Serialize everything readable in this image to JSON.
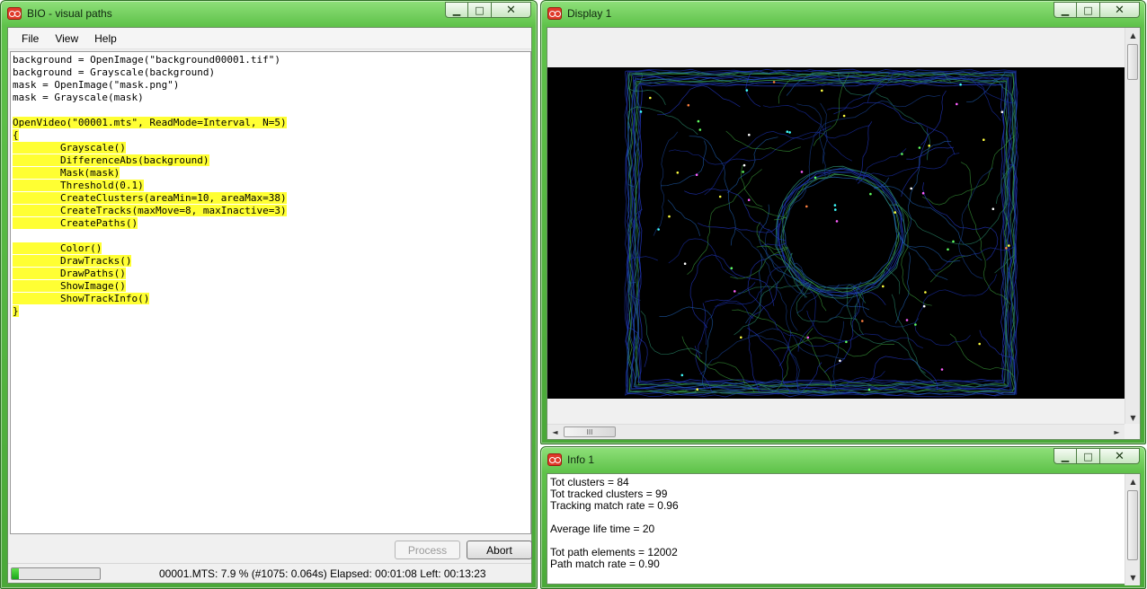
{
  "main_window": {
    "title": "BIO - visual paths",
    "menu": [
      "File",
      "View",
      "Help"
    ],
    "code_lines": [
      {
        "text": "background = OpenImage(\"background00001.tif\")",
        "highlighted": false
      },
      {
        "text": "background = Grayscale(background)",
        "highlighted": false
      },
      {
        "text": "mask = OpenImage(\"mask.png\")",
        "highlighted": false
      },
      {
        "text": "mask = Grayscale(mask)",
        "highlighted": false
      },
      {
        "text": "",
        "highlighted": false
      },
      {
        "text": "OpenVideo(\"00001.mts\", ReadMode=Interval, N=5)",
        "highlighted": true
      },
      {
        "text": "{",
        "highlighted": true
      },
      {
        "text": "        Grayscale()",
        "highlighted": true
      },
      {
        "text": "        DifferenceAbs(background)",
        "highlighted": true
      },
      {
        "text": "        Mask(mask)",
        "highlighted": true
      },
      {
        "text": "        Threshold(0.1)",
        "highlighted": true
      },
      {
        "text": "        CreateClusters(areaMin=10, areaMax=38)",
        "highlighted": true
      },
      {
        "text": "        CreateTracks(maxMove=8, maxInactive=3)",
        "highlighted": true
      },
      {
        "text": "        CreatePaths()",
        "highlighted": true
      },
      {
        "text": "",
        "highlighted": false
      },
      {
        "text": "        Color()",
        "highlighted": true
      },
      {
        "text": "        DrawTracks()",
        "highlighted": true
      },
      {
        "text": "        DrawPaths()",
        "highlighted": true
      },
      {
        "text": "        ShowImage()",
        "highlighted": true
      },
      {
        "text": "        ShowTrackInfo()",
        "highlighted": true
      },
      {
        "text": "}",
        "highlighted": true
      }
    ],
    "process_label": "Process",
    "abort_label": "Abort",
    "progress_percent": 7.9,
    "status_text": "00001.MTS: 7.9 % (#1075: 0.064s) Elapsed: 00:01:08 Left: 00:13:23"
  },
  "display_window": {
    "title": "Display 1",
    "scroll_up_glyph": "▲",
    "scroll_down_glyph": "▼",
    "scroll_left_glyph": "◄",
    "scroll_right_glyph": "►",
    "thumb_grip": "III"
  },
  "info_window": {
    "title": "Info 1",
    "lines": [
      "Tot clusters = 84",
      "Tot tracked clusters = 99",
      "Tracking match rate = 0.96",
      "",
      "Average life time = 20",
      "",
      "Tot path elements = 12002",
      "Path match rate = 0.90"
    ]
  },
  "caption_buttons": {
    "minimize": "▁",
    "maximize": "□",
    "close": "✕"
  },
  "colors": {
    "highlight": "#ffff33",
    "titlebar_green": "#5fc24a",
    "progress_green": "#1aa51a"
  }
}
